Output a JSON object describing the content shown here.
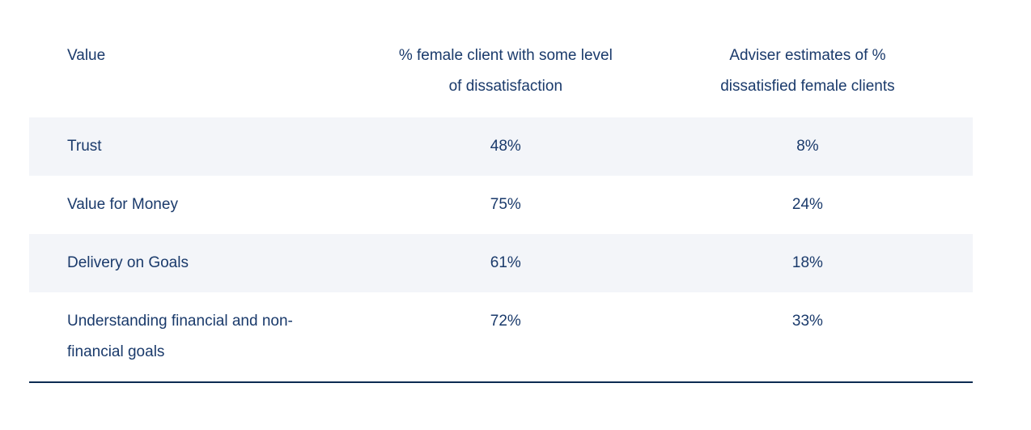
{
  "table": {
    "columns": [
      {
        "label": "Value"
      },
      {
        "label": "% female client with some level of dissatisfaction"
      },
      {
        "label": "Adviser estimates of % dissatisfied female clients"
      }
    ],
    "rows": [
      {
        "label": "Trust",
        "values": [
          "48%",
          "8%"
        ]
      },
      {
        "label": "Value for Money",
        "values": [
          "75%",
          "24%"
        ]
      },
      {
        "label": "Delivery on Goals",
        "values": [
          "61%",
          "18%"
        ]
      },
      {
        "label": "Understanding financial and non-financial goals",
        "values": [
          "72%",
          "33%"
        ]
      }
    ],
    "colors": {
      "text": "#1a3a6b",
      "row_alt_bg": "#f3f5f9",
      "bottom_border": "#0d2b52",
      "page_bg": "#ffffff"
    }
  }
}
